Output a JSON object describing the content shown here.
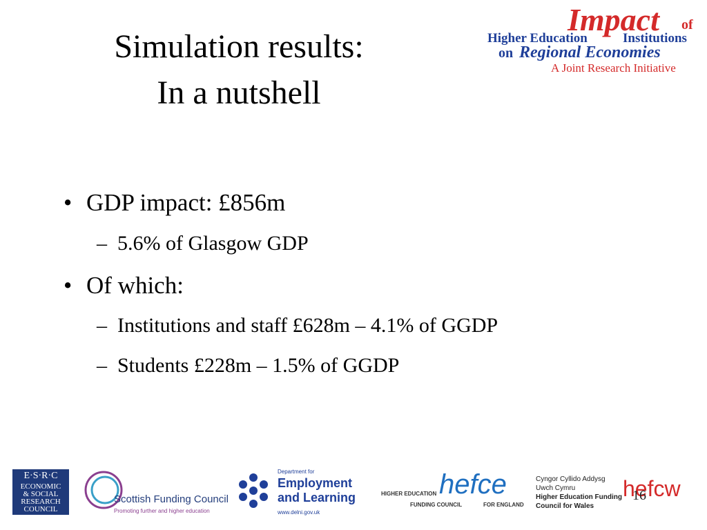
{
  "title": [
    "Simulation results:",
    "In a nutshell"
  ],
  "header_logo": {
    "impact": "Impact",
    "of": "of",
    "line2a": "Higher Education",
    "line2b": "Institutions",
    "line3a": "on",
    "line3b": "Regional Economies",
    "line4": "A Joint Research Initiative"
  },
  "bullets": [
    {
      "marker": "•",
      "text": "GDP impact: £856m",
      "sub": [
        {
          "marker": "–",
          "text": "5.6% of Glasgow GDP"
        }
      ]
    },
    {
      "marker": "•",
      "text": "Of which:",
      "sub": [
        {
          "marker": "–",
          "text": "Institutions and staff £628m – 4.1% of GGDP"
        },
        {
          "marker": "–",
          "text": "Students £228m – 1.5% of GGDP"
        }
      ]
    }
  ],
  "page_number": "16",
  "footer_logos": {
    "esrc": [
      "E·S·R·C",
      "ECONOMIC",
      "& SOCIAL",
      "RESEARCH",
      "COUNCIL"
    ],
    "sfc": [
      "Scottish Funding Council",
      "Promoting further and higher education"
    ],
    "del": [
      "Department for",
      "Employment",
      "and Learning",
      "www.delni.gov.uk"
    ],
    "hefce": [
      "HIGHER EDUCATION",
      "hefce",
      "FUNDING COUNCIL",
      "FOR ENGLAND"
    ],
    "hefcw": [
      "Cyngor Cyllido Addysg",
      "Uwch Cymru",
      "Higher Education Funding",
      "Council for Wales",
      "hefcw"
    ]
  }
}
